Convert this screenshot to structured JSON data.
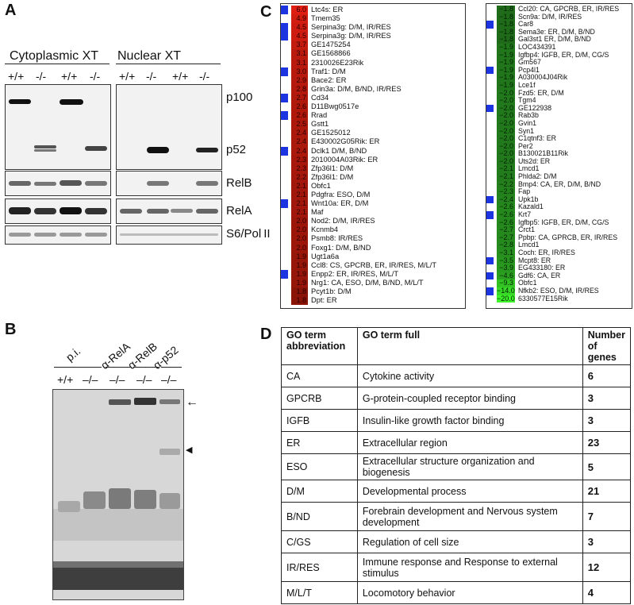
{
  "panels": {
    "a": "A",
    "b": "B",
    "c": "C",
    "d": "D"
  },
  "panel_a": {
    "cyto_title": "Cytoplasmic XT",
    "nuclear_title": "Nuclear XT",
    "genotypes": [
      "+/+",
      "-/-",
      "+/+",
      "-/-"
    ],
    "row_labels": {
      "p100": "p100",
      "p52": "p52",
      "relb": "RelB",
      "rela": "RelA",
      "s6": "S6/Pol II"
    }
  },
  "panel_b": {
    "groups": {
      "pi": "p.i.",
      "rela": "α-RelA",
      "relb": "α-RelB",
      "p52": "α-p52"
    },
    "genotypes": [
      "+/+",
      "–/–",
      "–/–",
      "–/–",
      "–/–"
    ],
    "arrow": "←",
    "arrowhead": "◀"
  },
  "panel_c": {
    "up": [
      {
        "v": "6.0",
        "g": "Ltc4s: ER",
        "b": true
      },
      {
        "v": "4.9",
        "g": "Tmem35",
        "b": false
      },
      {
        "v": "4.5",
        "g": "Serpina3g: D/M, IR/RES",
        "b": true
      },
      {
        "v": "4.5",
        "g": "Serpina3g: D/M, IR/RES",
        "b": true
      },
      {
        "v": "3.7",
        "g": "GE1475254",
        "b": false
      },
      {
        "v": "3.1",
        "g": "GE1568866",
        "b": false
      },
      {
        "v": "3.1",
        "g": "2310026E23Rik",
        "b": false
      },
      {
        "v": "3.0",
        "g": "Traf1: D/M",
        "b": true
      },
      {
        "v": "2.9",
        "g": "Bace2: ER",
        "b": false
      },
      {
        "v": "2.8",
        "g": "Grin3a: D/M, B/ND, IR/RES",
        "b": false
      },
      {
        "v": "2.7",
        "g": "Cd34",
        "b": true
      },
      {
        "v": "2.6",
        "g": "D11Bwg0517e",
        "b": false
      },
      {
        "v": "2.6",
        "g": "Rrad",
        "b": true
      },
      {
        "v": "2.5",
        "g": "Gstt1",
        "b": false
      },
      {
        "v": "2.4",
        "g": "GE1525012",
        "b": false
      },
      {
        "v": "2.4",
        "g": "E430002G05Rik: ER",
        "b": false
      },
      {
        "v": "2.4",
        "g": "Dclk1 D/M, B/ND",
        "b": true
      },
      {
        "v": "2.3",
        "g": "2010004A03Rik: ER",
        "b": false
      },
      {
        "v": "2.3",
        "g": "Zfp36l1: D/M",
        "b": false
      },
      {
        "v": "2.2",
        "g": "Zfp36l1: D/M",
        "b": false
      },
      {
        "v": "2.1",
        "g": "Obfc1",
        "b": false
      },
      {
        "v": "2.1",
        "g": "Pdgfra: ESO, D/M",
        "b": false
      },
      {
        "v": "2.1",
        "g": "Wnt10a: ER, D/M",
        "b": true
      },
      {
        "v": "2.1",
        "g": "Maf",
        "b": false
      },
      {
        "v": "2.0",
        "g": "Nod2: D/M, IR/RES",
        "b": false
      },
      {
        "v": "2.0",
        "g": "Kcnmb4",
        "b": false
      },
      {
        "v": "2.0",
        "g": "Psmb8: IR/RES",
        "b": false
      },
      {
        "v": "2.0",
        "g": "Foxg1: D/M, B/ND",
        "b": false
      },
      {
        "v": "1.9",
        "g": "Ugt1a6a",
        "b": false
      },
      {
        "v": "1.9",
        "g": "Ccl8: CS, GPCRB, ER, IR/RES, M/L/T",
        "b": false
      },
      {
        "v": "1.9",
        "g": "Enpp2: ER, IR/RES, M/L/T",
        "b": true
      },
      {
        "v": "1.9",
        "g": "Nrg1: CA, ESO, D/M, B/ND, M/L/T",
        "b": false
      },
      {
        "v": "1.8",
        "g": "Pcyt1b: D/M",
        "b": false
      },
      {
        "v": "1.8",
        "g": "Dpt: ER",
        "b": false
      }
    ],
    "down": [
      {
        "v": "−1.8",
        "g": "Ccl20: CA, GPCRB, ER, IR/RES",
        "b": false
      },
      {
        "v": "−1.8",
        "g": "Scn9a: D/M, IR/RES",
        "b": false
      },
      {
        "v": "−1.8",
        "g": "Car8",
        "b": true
      },
      {
        "v": "−1.8",
        "g": "Sema3e: ER, D/M, B/ND",
        "b": false
      },
      {
        "v": "−1.8",
        "g": "Gal3st1 ER, D/M, B/ND",
        "b": false
      },
      {
        "v": "−1.9",
        "g": "LOC434391",
        "b": false
      },
      {
        "v": "−1.9",
        "g": "Igfbp4: IGFB, ER, D/M, CG/S",
        "b": false
      },
      {
        "v": "−1.9",
        "g": "Gm567",
        "b": false
      },
      {
        "v": "−1.9",
        "g": "Pcp4l1",
        "b": true
      },
      {
        "v": "−1.9",
        "g": "A030004J04Rik",
        "b": false
      },
      {
        "v": "−1.9",
        "g": "Lce1f",
        "b": false
      },
      {
        "v": "−2.0",
        "g": "Fzd5: ER, D/M",
        "b": false
      },
      {
        "v": "−2.0",
        "g": "Tgm4",
        "b": false
      },
      {
        "v": "−2.0",
        "g": "GE122938",
        "b": true
      },
      {
        "v": "−2.0",
        "g": "Rab3b",
        "b": false
      },
      {
        "v": "−2.0",
        "g": "Gvin1",
        "b": false
      },
      {
        "v": "−2.0",
        "g": "Syn1",
        "b": false
      },
      {
        "v": "−2.0",
        "g": "C1qtnf3: ER",
        "b": false
      },
      {
        "v": "−2.0",
        "g": "Per2",
        "b": false
      },
      {
        "v": "−2.0",
        "g": "B130021B11Rik",
        "b": false
      },
      {
        "v": "−2.0",
        "g": "Uts2d: ER",
        "b": false
      },
      {
        "v": "−2.1",
        "g": "Lmcd1",
        "b": false
      },
      {
        "v": "−2.1",
        "g": "Phlda2: D/M",
        "b": false
      },
      {
        "v": "−2.2",
        "g": "Bmp4: CA, ER, D/M, B/ND",
        "b": false
      },
      {
        "v": "−2.3",
        "g": "Fap",
        "b": false
      },
      {
        "v": "−2.4",
        "g": "Upk1b",
        "b": true
      },
      {
        "v": "−2.6",
        "g": "Kazald1",
        "b": false
      },
      {
        "v": "−2.6",
        "g": "Krt7",
        "b": true
      },
      {
        "v": "−2.6",
        "g": "Igfbp5: IGFB, ER, D/M, CG/S",
        "b": false
      },
      {
        "v": "−2.7",
        "g": "Crct1",
        "b": false
      },
      {
        "v": "−2.7",
        "g": "Ppbp: CA, GPRCB, ER, IR/RES",
        "b": false
      },
      {
        "v": "−2.8",
        "g": "Lmcd1",
        "b": false
      },
      {
        "v": "−3.1",
        "g": "Coch: ER, IR/RES",
        "b": false
      },
      {
        "v": "−3.5",
        "g": "Mcpt8: ER",
        "b": true
      },
      {
        "v": "−3.9",
        "g": "EG433180: ER",
        "b": false
      },
      {
        "v": "−4.6",
        "g": "Gdf6: CA, ER",
        "b": true
      },
      {
        "v": "−9.3",
        "g": "Obfc1",
        "b": false
      },
      {
        "v": "−14.0",
        "g": "Nfkb2: ESO, D/M, IR/RES",
        "b": true
      },
      {
        "v": "−20.0",
        "g": "6330577E15Rik",
        "b": false
      }
    ]
  },
  "panel_d": {
    "headers": [
      "GO term abbreviation",
      "GO term full",
      "Number of genes"
    ],
    "rows": [
      {
        "abbr": "CA",
        "full": "Cytokine activity",
        "n": "6"
      },
      {
        "abbr": "GPCRB",
        "full": "G-protein-coupled receptor binding",
        "n": "3"
      },
      {
        "abbr": "IGFB",
        "full": "Insulin-like growth factor binding",
        "n": "3"
      },
      {
        "abbr": "ER",
        "full": "Extracellular region",
        "n": "23"
      },
      {
        "abbr": "ESO",
        "full": "Extracellular structure organization and biogenesis",
        "n": "5"
      },
      {
        "abbr": "D/M",
        "full": "Developmental process",
        "n": "21"
      },
      {
        "abbr": "B/ND",
        "full": "Forebrain development and Nervous system development",
        "n": "7"
      },
      {
        "abbr": "C/GS",
        "full": "Regulation of cell size",
        "n": "3"
      },
      {
        "abbr": "IR/RES",
        "full": "Immune response and Response to external stimulus",
        "n": "12"
      },
      {
        "abbr": "M/L/T",
        "full": "Locomotory behavior",
        "n": "4"
      }
    ]
  },
  "colors": {
    "up_high": "#e01e12",
    "up_low": "#8a1408",
    "down_low": "#1f6b1a",
    "down_high": "#3ef32a",
    "go_tick": "#1d35e0"
  }
}
